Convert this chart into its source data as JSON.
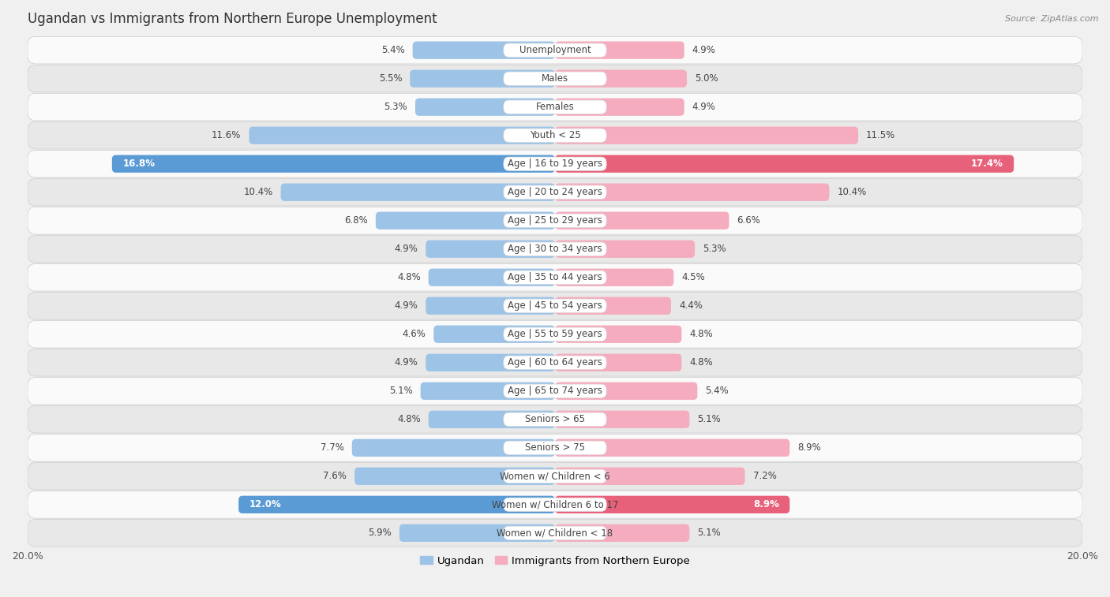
{
  "title": "Ugandan vs Immigrants from Northern Europe Unemployment",
  "source": "Source: ZipAtlas.com",
  "categories": [
    "Unemployment",
    "Males",
    "Females",
    "Youth < 25",
    "Age | 16 to 19 years",
    "Age | 20 to 24 years",
    "Age | 25 to 29 years",
    "Age | 30 to 34 years",
    "Age | 35 to 44 years",
    "Age | 45 to 54 years",
    "Age | 55 to 59 years",
    "Age | 60 to 64 years",
    "Age | 65 to 74 years",
    "Seniors > 65",
    "Seniors > 75",
    "Women w/ Children < 6",
    "Women w/ Children 6 to 17",
    "Women w/ Children < 18"
  ],
  "ugandan": [
    5.4,
    5.5,
    5.3,
    11.6,
    16.8,
    10.4,
    6.8,
    4.9,
    4.8,
    4.9,
    4.6,
    4.9,
    5.1,
    4.8,
    7.7,
    7.6,
    12.0,
    5.9
  ],
  "immigrants": [
    4.9,
    5.0,
    4.9,
    11.5,
    17.4,
    10.4,
    6.6,
    5.3,
    4.5,
    4.4,
    4.8,
    4.8,
    5.4,
    5.1,
    8.9,
    7.2,
    8.9,
    5.1
  ],
  "ugandan_color": "#9dc3e6",
  "immigrants_color": "#f4acbe",
  "ugandan_highlight_color": "#5b9bd5",
  "immigrants_highlight_color": "#e8617a",
  "highlight_rows": [
    4,
    16
  ],
  "max_val": 20.0,
  "bg_color": "#f0f0f0",
  "row_color_light": "#fafafa",
  "row_color_dark": "#e8e8e8",
  "label_fontsize": 8.5,
  "title_fontsize": 12,
  "legend_ugandan": "Ugandan",
  "legend_immigrants": "Immigrants from Northern Europe"
}
